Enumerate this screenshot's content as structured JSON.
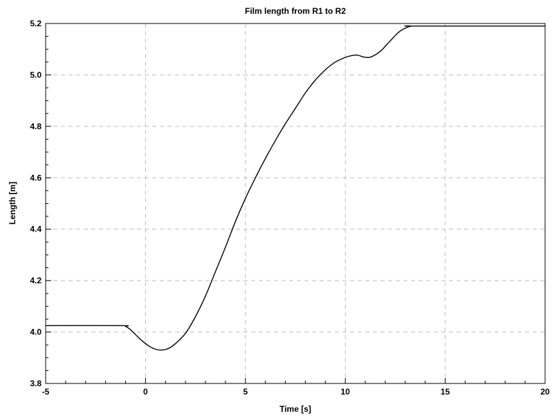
{
  "chart_data": {
    "type": "line",
    "title": "Film length from R1 to R2",
    "xlabel": "Time [s]",
    "ylabel": "Length [m]",
    "xlim": [
      -5,
      20
    ],
    "ylim": [
      3.8,
      5.2
    ],
    "xticks": [
      -5,
      0,
      5,
      10,
      15,
      20
    ],
    "yticks": [
      3.8,
      4.0,
      4.2,
      4.4,
      4.6,
      4.8,
      5.0,
      5.2
    ],
    "xtick_labels": [
      "-5",
      "0",
      "5",
      "10",
      "15",
      "20"
    ],
    "ytick_labels": [
      "3.8",
      "4.0",
      "4.2",
      "4.4",
      "4.6",
      "4.8",
      "5.0",
      "5.2"
    ],
    "grid": true,
    "series": [
      {
        "color": "#000000",
        "x": [
          -5,
          -1.2,
          -1.0,
          -0.8,
          -0.6,
          -0.4,
          -0.2,
          0.0,
          0.2,
          0.4,
          0.6,
          0.8,
          1.0,
          1.2,
          1.5,
          2.0,
          2.5,
          3.0,
          3.5,
          4.0,
          4.5,
          5.0,
          5.5,
          6.0,
          6.5,
          7.0,
          7.5,
          8.0,
          8.5,
          9.0,
          9.5,
          10.0,
          10.3,
          10.6,
          10.9,
          11.2,
          11.5,
          11.8,
          12.1,
          12.4,
          12.7,
          13.0,
          13.3,
          13.5,
          20
        ],
        "y": [
          4.025,
          4.025,
          4.022,
          4.012,
          3.998,
          3.982,
          3.968,
          3.955,
          3.944,
          3.936,
          3.931,
          3.93,
          3.932,
          3.938,
          3.955,
          3.995,
          4.06,
          4.14,
          4.235,
          4.33,
          4.43,
          4.52,
          4.6,
          4.675,
          4.745,
          4.81,
          4.87,
          4.93,
          4.98,
          5.02,
          5.05,
          5.068,
          5.075,
          5.077,
          5.07,
          5.068,
          5.078,
          5.095,
          5.12,
          5.145,
          5.168,
          5.182,
          5.19,
          5.19,
          5.19
        ]
      }
    ]
  }
}
